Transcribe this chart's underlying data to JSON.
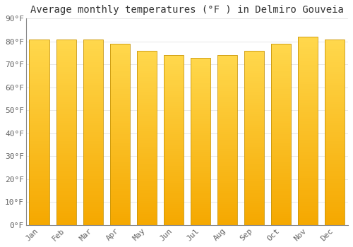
{
  "title": "Average monthly temperatures (°F ) in Delmiro Gouveia",
  "months": [
    "Jan",
    "Feb",
    "Mar",
    "Apr",
    "May",
    "Jun",
    "Jul",
    "Aug",
    "Sep",
    "Oct",
    "Nov",
    "Dec"
  ],
  "values": [
    81,
    81,
    81,
    79,
    76,
    74,
    73,
    74,
    76,
    79,
    82,
    81
  ],
  "ylim": [
    0,
    90
  ],
  "yticks": [
    0,
    10,
    20,
    30,
    40,
    50,
    60,
    70,
    80,
    90
  ],
  "ytick_labels": [
    "0°F",
    "10°F",
    "20°F",
    "30°F",
    "40°F",
    "50°F",
    "60°F",
    "70°F",
    "80°F",
    "90°F"
  ],
  "bar_color_bottom": "#F5A800",
  "bar_color_top": "#FFD84D",
  "bar_edge_color": "#C8960C",
  "background_color": "#FFFFFF",
  "plot_bg_color": "#FFFFFF",
  "grid_color": "#DDDDDD",
  "title_fontsize": 10,
  "tick_fontsize": 8,
  "tick_color": "#666666",
  "title_color": "#333333",
  "font_family": "monospace",
  "bar_width": 0.75
}
